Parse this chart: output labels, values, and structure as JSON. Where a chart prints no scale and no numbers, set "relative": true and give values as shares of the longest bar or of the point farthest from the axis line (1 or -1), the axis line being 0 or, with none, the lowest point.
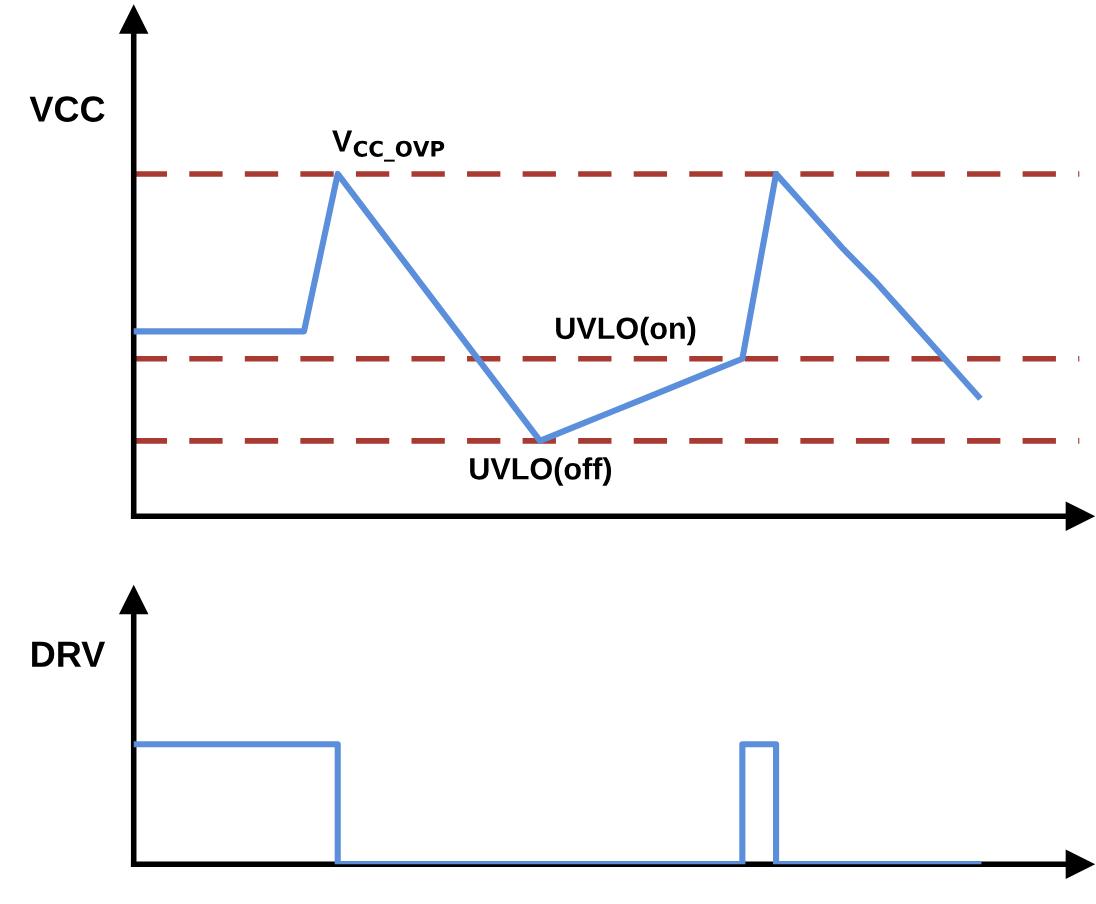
{
  "chart_data": [
    {
      "type": "line",
      "ylabel": "VCC",
      "relative": true,
      "legend": false,
      "marker": "none",
      "line_style": "solid",
      "categories": [
        null,
        null,
        null,
        null,
        null,
        null,
        null,
        null,
        null,
        null,
        null,
        null,
        null,
        null,
        null,
        null,
        null,
        null,
        null,
        null,
        null,
        null,
        null,
        null,
        null,
        null
      ],
      "series": [
        {
          "color": "#5b8fdb",
          "values": [
            0.54,
            0.54,
            0.54,
            0.54,
            0.54,
            0.54,
            1,
            0.87,
            0.74,
            0.61,
            0.48,
            0.35,
            0.22,
            0.26,
            0.3,
            0.34,
            0.38,
            0.42,
            0.46,
            1,
            0.89,
            0.78,
            0.68,
            0.57,
            0.46,
            0.35
          ]
        }
      ],
      "ref_lines": [
        {
          "axis": "y",
          "value": 1,
          "label": "V$_{CC_OVP}$",
          "color": "#a83a32",
          "line_style": "dashed"
        },
        {
          "axis": "y",
          "value": 0.46,
          "label": "UVLO(on)",
          "color": "#a83a32",
          "line_style": "dashed"
        },
        {
          "axis": "y",
          "value": 0.22,
          "label": "UVLO(off)",
          "color": "#a83a32",
          "line_style": "dashed"
        }
      ]
    },
    {
      "type": "step",
      "ylabel": "DRV",
      "relative": true,
      "legend": false,
      "marker": "none",
      "line_style": "solid",
      "categories": [
        null,
        null,
        null,
        null,
        null,
        null,
        null,
        null,
        null,
        null,
        null,
        null,
        null,
        null,
        null,
        null,
        null,
        null,
        null,
        null,
        null,
        null,
        null,
        null,
        null,
        null
      ],
      "series": [
        {
          "color": "#5b8fdb",
          "values": [
            1,
            1,
            1,
            1,
            1,
            1,
            0,
            0,
            0,
            0,
            0,
            0,
            0,
            0,
            0,
            0,
            0,
            0,
            1,
            0,
            0,
            0,
            0,
            0,
            0,
            0
          ]
        }
      ]
    }
  ]
}
